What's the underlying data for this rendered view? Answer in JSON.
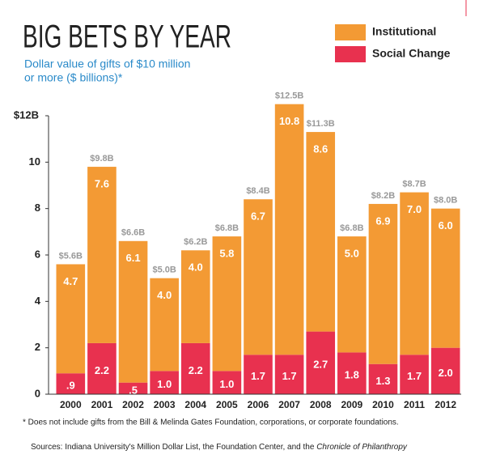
{
  "chart_data": {
    "type": "stacked_bar",
    "title": "BIG BETS BY YEAR",
    "subtitle": [
      "Dollar value of gifts of $10 million",
      "or more ($ billions)*"
    ],
    "categories": [
      "2000",
      "2001",
      "2002",
      "2003",
      "2004",
      "2005",
      "2006",
      "2007",
      "2008",
      "2009",
      "2010",
      "2011",
      "2012"
    ],
    "series": [
      {
        "name": "Social Change",
        "color": "#e8314f",
        "values": [
          0.9,
          2.2,
          0.5,
          1.0,
          2.2,
          1.0,
          1.7,
          1.7,
          2.7,
          1.8,
          1.3,
          1.7,
          2.0
        ],
        "value_labels": [
          ".9",
          "2.2",
          ".5",
          "1.0",
          "2.2",
          "1.0",
          "1.7",
          "1.7",
          "2.7",
          "1.8",
          "1.3",
          "1.7",
          "2.0"
        ]
      },
      {
        "name": "Institutional",
        "color": "#f39a34",
        "values": [
          4.7,
          7.6,
          6.1,
          4.0,
          4.0,
          5.8,
          6.7,
          10.8,
          8.6,
          5.0,
          6.9,
          7.0,
          6.0
        ],
        "value_labels": [
          "4.7",
          "7.6",
          "6.1",
          "4.0",
          "4.0",
          "5.8",
          "6.7",
          "10.8",
          "8.6",
          "5.0",
          "6.9",
          "7.0",
          "6.0"
        ]
      }
    ],
    "totals": {
      "values": [
        5.6,
        9.8,
        6.6,
        5.0,
        6.2,
        6.8,
        8.4,
        12.5,
        11.3,
        6.8,
        8.2,
        8.7,
        8.0
      ],
      "value_labels": [
        "$5.6B",
        "$9.8B",
        "$6.6B",
        "$5.0B",
        "$6.2B",
        "$6.8B",
        "$8.4B",
        "$12.5B",
        "$11.3B",
        "$6.8B",
        "$8.2B",
        "$8.7B",
        "$8.0B"
      ]
    },
    "ylim": [
      0,
      12
    ],
    "yticks": [
      0,
      2,
      4,
      6,
      8,
      10,
      {
        "value": 12,
        "label": "$12B"
      }
    ],
    "legend": "top-right",
    "footnote": "* Does not include gifts from the Bill & Melinda Gates Foundation, corporations, or corporate foundations.",
    "sources": {
      "text": "Sources: Indiana University's Million Dollar List, the Foundation Center, and the ",
      "italic": "Chronicle of Philanthropy"
    }
  }
}
